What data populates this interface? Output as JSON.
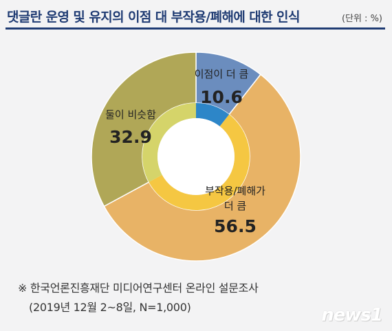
{
  "header": {
    "title": "댓글란 운영 및 유지의 이점 대 부작용/폐해에 대한 인식",
    "unit": "(단위 : %)"
  },
  "chart_data": {
    "type": "pie",
    "variant": "donut",
    "categories": [
      "이점이 더 큼",
      "부작용/폐해가 더 큼",
      "둘이 비슷함"
    ],
    "values": [
      10.6,
      56.5,
      32.9
    ],
    "colors": [
      "#6b8dbe",
      "#e8b366",
      "#b0a757"
    ],
    "inner_ring_colors": [
      "#2d86c8",
      "#f5c742",
      "#d5d46a"
    ],
    "title": "댓글란 운영 및 유지의 이점 대 부작용/폐해에 대한 인식",
    "unit": "(단위 : %)"
  },
  "labels": {
    "benefit_name": "이점이 더 큼",
    "benefit_value": "10.6",
    "harm_name_line1": "부작용/폐해가",
    "harm_name_line2": "더 큼",
    "harm_value": "56.5",
    "similar_name": "둘이 비슷함",
    "similar_value": "32.9"
  },
  "footer": {
    "note_line1": "※  한국언론진흥재단 미디어연구센터 온라인 설문조사",
    "note_line2": "(2019년 12월 2~8일, N=1,000)",
    "logo": "news1"
  }
}
